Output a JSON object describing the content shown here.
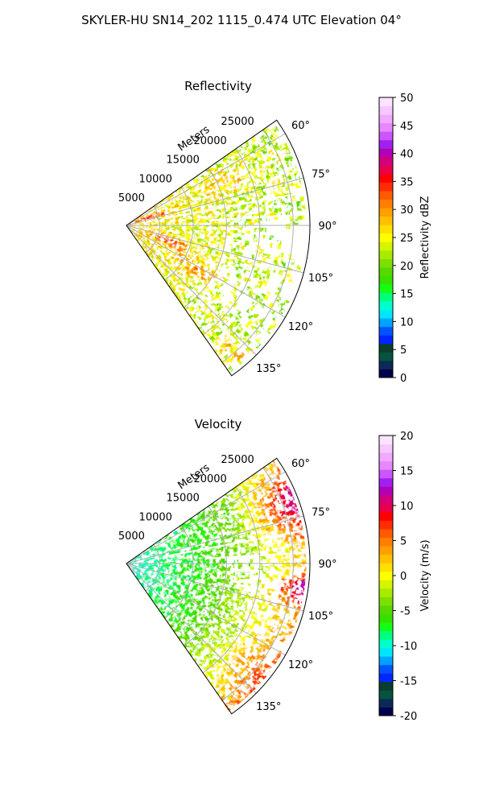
{
  "figure": {
    "title": "SKYLER-HU  SN14_202  1115_0.474 UTC Elevation 04°"
  },
  "chart_data": [
    {
      "type": "heatmap",
      "projection": "polar-sector",
      "title": "Reflectivity",
      "range_label": "Meters",
      "range_ticks": [
        5000,
        10000,
        15000,
        20000,
        25000
      ],
      "range_max": 27500,
      "azimuth_ticks": [
        "60°",
        "75°",
        "90°",
        "105°",
        "120°",
        "135°"
      ],
      "azimuth_tick_values": [
        60,
        75,
        90,
        105,
        120,
        135
      ],
      "azimuth_range": [
        55,
        145
      ],
      "grid": true,
      "colorbar": {
        "label": "Reflectivity dBZ",
        "min": 0,
        "max": 50,
        "ticks": [
          0,
          5,
          10,
          15,
          20,
          25,
          30,
          35,
          40,
          45,
          50
        ],
        "colors": [
          "#00004c",
          "#0b2a57",
          "#06533f",
          "#0a3d2b",
          "#0026ff",
          "#0053ff",
          "#00a3ff",
          "#00e6ff",
          "#00ffcc",
          "#00ff7f",
          "#14ff14",
          "#38e000",
          "#55d900",
          "#7ee000",
          "#a8eb00",
          "#d4f500",
          "#ffff00",
          "#ffe000",
          "#ffc000",
          "#ff9f00",
          "#ff7f00",
          "#ff5a00",
          "#ff2d00",
          "#ff0000",
          "#e8004a",
          "#d2007a",
          "#b400b4",
          "#a020f0",
          "#cc55ff",
          "#e688ff",
          "#f0aaff",
          "#f7c8ff",
          "#fbe4ff"
        ]
      },
      "value_summary": "mostly 18–30 dBZ; strongest returns 33–38 dBZ near the radar along 70° and 105°–115° azimuth; scattered 20–25 dBZ at far range"
    },
    {
      "type": "heatmap",
      "projection": "polar-sector",
      "title": "Velocity",
      "range_label": "Meters",
      "range_ticks": [
        5000,
        10000,
        15000,
        20000,
        25000
      ],
      "range_max": 27500,
      "azimuth_ticks": [
        "60°",
        "75°",
        "90°",
        "105°",
        "120°",
        "135°"
      ],
      "azimuth_tick_values": [
        60,
        75,
        90,
        105,
        120,
        135
      ],
      "azimuth_range": [
        55,
        145
      ],
      "grid": true,
      "colorbar": {
        "label": "Velocity (m/s)",
        "min": -20,
        "max": 20,
        "ticks": [
          -20,
          -15,
          -10,
          -5,
          0,
          5,
          10,
          15,
          20
        ],
        "colors": [
          "#00004c",
          "#0b2a57",
          "#06533f",
          "#0a3d2b",
          "#0026ff",
          "#0053ff",
          "#00a3ff",
          "#00e6ff",
          "#00ffcc",
          "#00ff7f",
          "#14ff14",
          "#38e000",
          "#55d900",
          "#7ee000",
          "#a8eb00",
          "#d4f500",
          "#ffff00",
          "#ffe000",
          "#ffc000",
          "#ff9f00",
          "#ff7f00",
          "#ff5a00",
          "#ff2d00",
          "#ff0000",
          "#e8004a",
          "#d2007a",
          "#b400b4",
          "#a020f0",
          "#cc55ff",
          "#e688ff",
          "#f0aaff",
          "#f7c8ff",
          "#fbe4ff"
        ]
      },
      "value_summary": "about -10 m/s near the radar, -5 m/s across mid range, 0 to +5 m/s at far range, +8 to +12 m/s at the far edge near 60°–80°, +14 to +16 m/s near 95°–100°"
    }
  ]
}
